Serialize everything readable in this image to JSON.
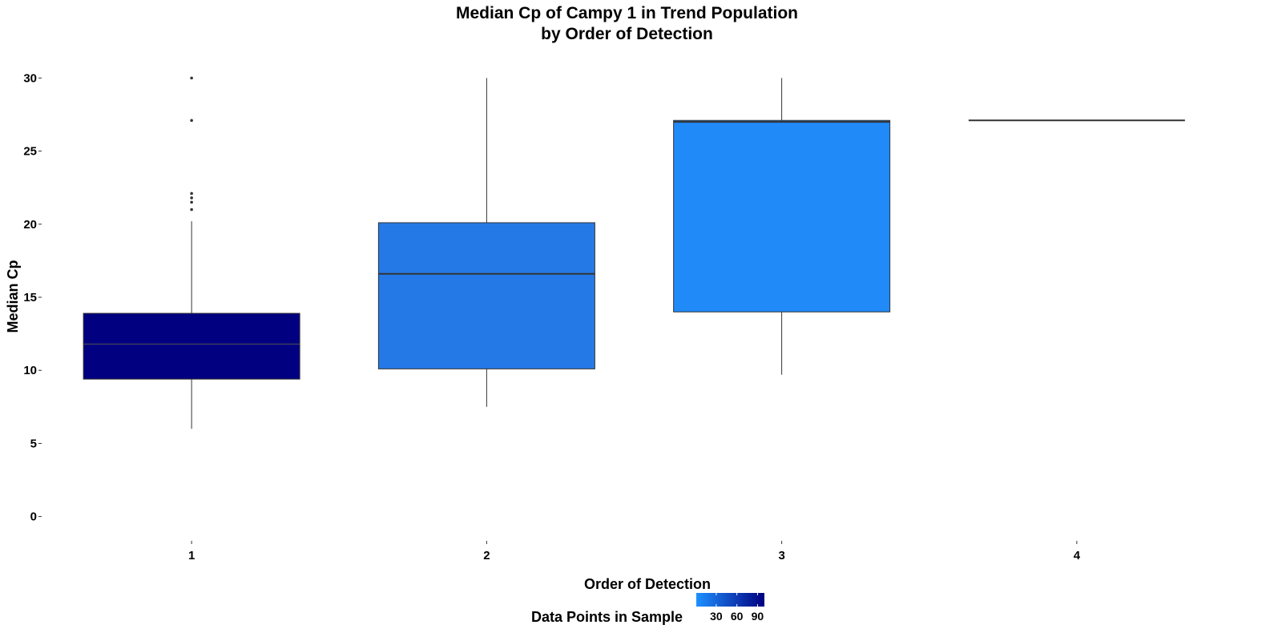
{
  "chart_data": {
    "type": "boxplot",
    "title": "Median Cp of Campy 1 in Trend Population",
    "subtitle": "by Order of Detection",
    "xlabel": "Order of Detection",
    "ylabel": "Median Cp",
    "ylim": [
      -1.5,
      31.5
    ],
    "y_ticks": [
      0,
      5,
      10,
      15,
      20,
      25,
      30
    ],
    "categories": [
      "1",
      "2",
      "3",
      "4"
    ],
    "boxes": [
      {
        "category": "1",
        "min": 6.0,
        "q1": 9.4,
        "median": 11.8,
        "q3": 13.9,
        "max": 20.2,
        "outliers": [
          21.0,
          21.5,
          21.8,
          22.1,
          27.1,
          30.0
        ],
        "n": 100,
        "color": "#000080"
      },
      {
        "category": "2",
        "min": 7.5,
        "q1": 10.1,
        "median": 16.6,
        "q3": 20.1,
        "max": 30.0,
        "outliers": [],
        "n": 20,
        "color": "#2579E7"
      },
      {
        "category": "3",
        "min": 9.7,
        "q1": 14.0,
        "median": 27.0,
        "q3": 27.1,
        "max": 30.0,
        "outliers": [],
        "n": 5,
        "color": "#208AF8"
      },
      {
        "category": "4",
        "min": 27.1,
        "q1": 27.1,
        "median": 27.1,
        "q3": 27.1,
        "max": 27.1,
        "outliers": [],
        "n": 1,
        "color": "#1E90FF"
      }
    ],
    "grid": false,
    "legend": {
      "title": "Data Points in Sample",
      "position": "bottom",
      "ticks": [
        30,
        60,
        90
      ],
      "range": [
        1,
        100
      ],
      "color_low": "#1E90FF",
      "color_high": "#000080"
    }
  }
}
